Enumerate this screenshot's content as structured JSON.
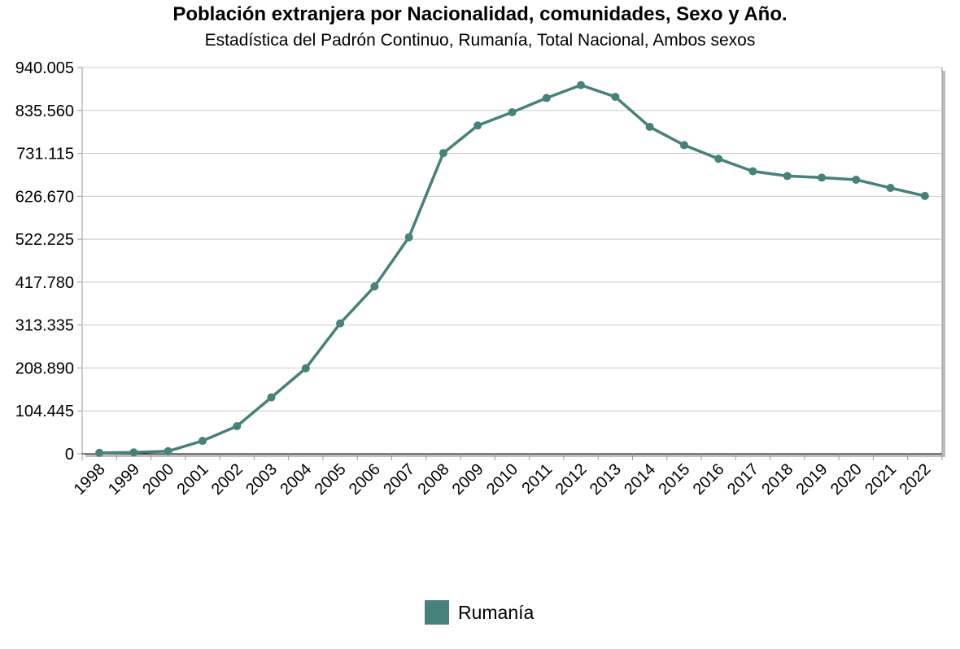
{
  "chart_data": {
    "type": "line",
    "title": "Población extranjera por Nacionalidad, comunidades, Sexo y Año.",
    "subtitle": "Estadística del Padrón Continuo, Rumanía, Total Nacional, Ambos sexos",
    "xlabel": "",
    "ylabel": "",
    "ylim": [
      0,
      940005
    ],
    "yticks": [
      "0",
      "104.445",
      "208.890",
      "313.335",
      "417.780",
      "522.225",
      "626.670",
      "731.115",
      "835.560",
      "940.005"
    ],
    "grid": true,
    "legend_position": "bottom",
    "categories": [
      "1998",
      "1999",
      "2000",
      "2001",
      "2002",
      "2003",
      "2004",
      "2005",
      "2006",
      "2007",
      "2008",
      "2009",
      "2010",
      "2011",
      "2012",
      "2013",
      "2014",
      "2015",
      "2016",
      "2017",
      "2018",
      "2019",
      "2020",
      "2021",
      "2022"
    ],
    "series": [
      {
        "name": "Rumanía",
        "color": "#46817a",
        "values": [
          2400,
          3500,
          6400,
          31600,
          67300,
          137300,
          208000,
          317400,
          407200,
          527000,
          731800,
          798900,
          831200,
          865700,
          897200,
          868600,
          795500,
          751200,
          717900,
          687400,
          676000,
          672000,
          667000,
          647000,
          627500
        ]
      }
    ]
  }
}
